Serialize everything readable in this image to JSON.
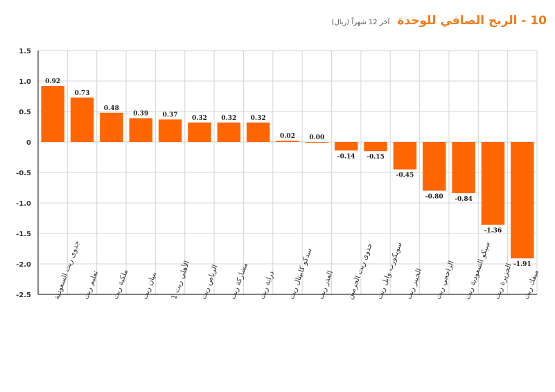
{
  "header": {
    "title": "10 - الربح الصافي للوحدة",
    "subtitle": "آخر 12 شهراً (ريال)"
  },
  "colors": {
    "bar": "#ff6600",
    "title": "#f07c1a",
    "grid": "#d6d6d6"
  },
  "chart_data": {
    "type": "bar",
    "categories": [
      "جدوى ريت السعودية",
      "تعليم ريت",
      "ملكية ريت",
      "بنيان ريت",
      "الأهلي ريت 1",
      "الرياض ريت",
      "مشاركة ريت",
      "دراية ريت",
      "سدكو كابيتال ريت",
      "العذر ريت",
      "جدوى ريت الحرمين",
      "سويكورب وابل ريت",
      "الخبير ريت",
      "الراجحي ريت",
      "سيكو السعودية ريت",
      "الجزيرة ريت",
      "ميفك ريت"
    ],
    "values": [
      0.92,
      0.73,
      0.48,
      0.39,
      0.37,
      0.32,
      0.32,
      0.32,
      0.02,
      0.0,
      -0.14,
      -0.15,
      -0.45,
      -0.8,
      -0.84,
      -1.36,
      -1.91
    ],
    "value_labels": [
      "0.92",
      "0.73",
      "0.48",
      "0.39",
      "0.37",
      "0.32",
      "0.32",
      "0.32",
      "0.02",
      "0.00",
      "-0.14",
      "-0.15",
      "-0.45",
      "-0.80",
      "-0.84",
      "-1.36",
      "-1.91"
    ],
    "ylim": [
      -2.5,
      1.5
    ],
    "yticks": [
      1.5,
      1.0,
      0.5,
      0,
      -0.5,
      -1.0,
      -1.5,
      -2.0,
      -2.5
    ],
    "ytick_labels": [
      "1.5",
      "1.0",
      "0.5",
      "0",
      "-0.5",
      "-1.0",
      "-1.5",
      "-2.0",
      "-2.5"
    ],
    "grid": true
  }
}
